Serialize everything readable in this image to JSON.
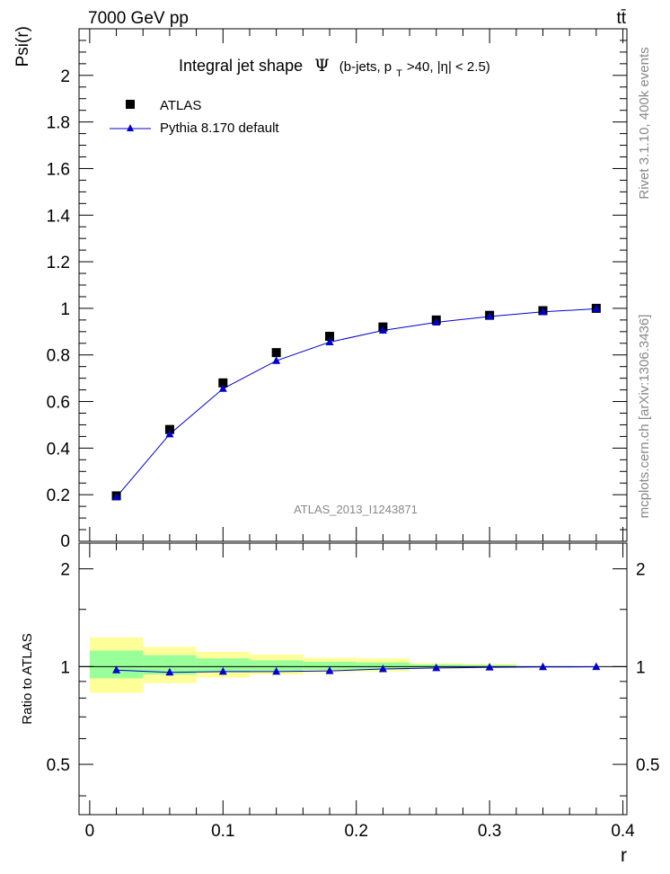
{
  "header": {
    "left": "7000 GeV pp",
    "right": "tt̄"
  },
  "side_labels": {
    "rivet": "Rivet 3.1.10,  400k events",
    "mcplots": "mcplots.cern.ch [arXiv:1306.3436]"
  },
  "colors": {
    "mc": "#0000cc",
    "band_inner": "#99ff99",
    "band_outer": "#ffff99",
    "data": "#000000"
  },
  "chart_data": [
    {
      "type": "scatter",
      "title_prefix": "Integral jet shape",
      "title_symbol": "Ψ",
      "title_paren_open": "(b-jets, p",
      "title_sub": "T",
      "title_paren_close": ">40, |η| < 2.5)",
      "watermark": "ATLAS_2013_I1243871",
      "xlabel": "",
      "ylabel": "Psi(r)",
      "xlim": [
        -0.008,
        0.403
      ],
      "ylim": [
        0,
        2.2
      ],
      "yticks": [
        {
          "v": 0.2,
          "label": "0.2"
        },
        {
          "v": 0.4,
          "label": "0.4"
        },
        {
          "v": 0.6,
          "label": "0.6"
        },
        {
          "v": 0.8,
          "label": "0.8"
        },
        {
          "v": 1.0,
          "label": "1"
        },
        {
          "v": 1.2,
          "label": "1.2"
        },
        {
          "v": 1.4,
          "label": "1.4"
        },
        {
          "v": 1.6,
          "label": "1.6"
        },
        {
          "v": 1.8,
          "label": "1.8"
        },
        {
          "v": 2.0,
          "label": "2"
        }
      ],
      "ytick_zero_label": "0",
      "legend": {
        "position": "top-left"
      },
      "series": [
        {
          "name": "ATLAS",
          "marker": "square",
          "x": [
            0.02,
            0.06,
            0.1,
            0.14,
            0.18,
            0.22,
            0.26,
            0.3,
            0.34,
            0.38
          ],
          "y": [
            0.195,
            0.48,
            0.68,
            0.81,
            0.88,
            0.92,
            0.95,
            0.97,
            0.99,
            1.0
          ]
        },
        {
          "name": "Pythia 8.170 default",
          "marker": "triangle",
          "x": [
            0.02,
            0.06,
            0.1,
            0.14,
            0.18,
            0.22,
            0.26,
            0.3,
            0.34,
            0.38
          ],
          "y": [
            0.19,
            0.46,
            0.655,
            0.775,
            0.855,
            0.905,
            0.94,
            0.965,
            0.985,
            0.998
          ]
        }
      ]
    },
    {
      "type": "scatter",
      "title": "",
      "xlabel": "r",
      "ylabel": "Ratio to ATLAS",
      "xlim": [
        -0.008,
        0.403
      ],
      "ylim": [
        0.35,
        2.4
      ],
      "ylog": true,
      "xticks": [
        {
          "v": 0,
          "label": "0"
        },
        {
          "v": 0.1,
          "label": "0.1"
        },
        {
          "v": 0.2,
          "label": "0.2"
        },
        {
          "v": 0.3,
          "label": "0.3"
        },
        {
          "v": 0.4,
          "label": "0.4"
        }
      ],
      "yticks": [
        {
          "v": 0.5,
          "label": "0.5"
        },
        {
          "v": 1,
          "label": "1"
        },
        {
          "v": 2,
          "label": "2"
        }
      ],
      "bands": [
        {
          "x0": 0.0,
          "x1": 0.04,
          "outer": [
            0.83,
            1.23
          ],
          "inner": [
            0.92,
            1.12
          ]
        },
        {
          "x0": 0.04,
          "x1": 0.08,
          "outer": [
            0.89,
            1.15
          ],
          "inner": [
            0.945,
            1.085
          ]
        },
        {
          "x0": 0.08,
          "x1": 0.12,
          "outer": [
            0.925,
            1.11
          ],
          "inner": [
            0.96,
            1.06
          ]
        },
        {
          "x0": 0.12,
          "x1": 0.16,
          "outer": [
            0.945,
            1.09
          ],
          "inner": [
            0.97,
            1.045
          ]
        },
        {
          "x0": 0.16,
          "x1": 0.2,
          "outer": [
            0.96,
            1.065
          ],
          "inner": [
            0.978,
            1.035
          ]
        },
        {
          "x0": 0.2,
          "x1": 0.24,
          "outer": [
            0.965,
            1.06
          ],
          "inner": [
            0.98,
            1.03
          ]
        },
        {
          "x0": 0.24,
          "x1": 0.28,
          "outer": [
            0.985,
            1.025
          ],
          "inner": [
            0.99,
            1.015
          ]
        },
        {
          "x0": 0.28,
          "x1": 0.32,
          "outer": [
            0.99,
            1.02
          ],
          "inner": [
            0.993,
            1.012
          ]
        },
        {
          "x0": 0.32,
          "x1": 0.36,
          "outer": [
            0.997,
            1.004
          ],
          "inner": [
            0.998,
            1.003
          ]
        },
        {
          "x0": 0.36,
          "x1": 0.4,
          "outer": [
            0.999,
            1.001
          ],
          "inner": [
            0.9995,
            1.0005
          ]
        }
      ],
      "series": [
        {
          "name": "Pythia 8.170 default",
          "marker": "triangle",
          "x": [
            0.02,
            0.06,
            0.1,
            0.14,
            0.18,
            0.22,
            0.26,
            0.3,
            0.34,
            0.38
          ],
          "y": [
            0.975,
            0.96,
            0.965,
            0.965,
            0.97,
            0.983,
            0.99,
            0.995,
            0.997,
            0.998
          ]
        }
      ]
    }
  ]
}
